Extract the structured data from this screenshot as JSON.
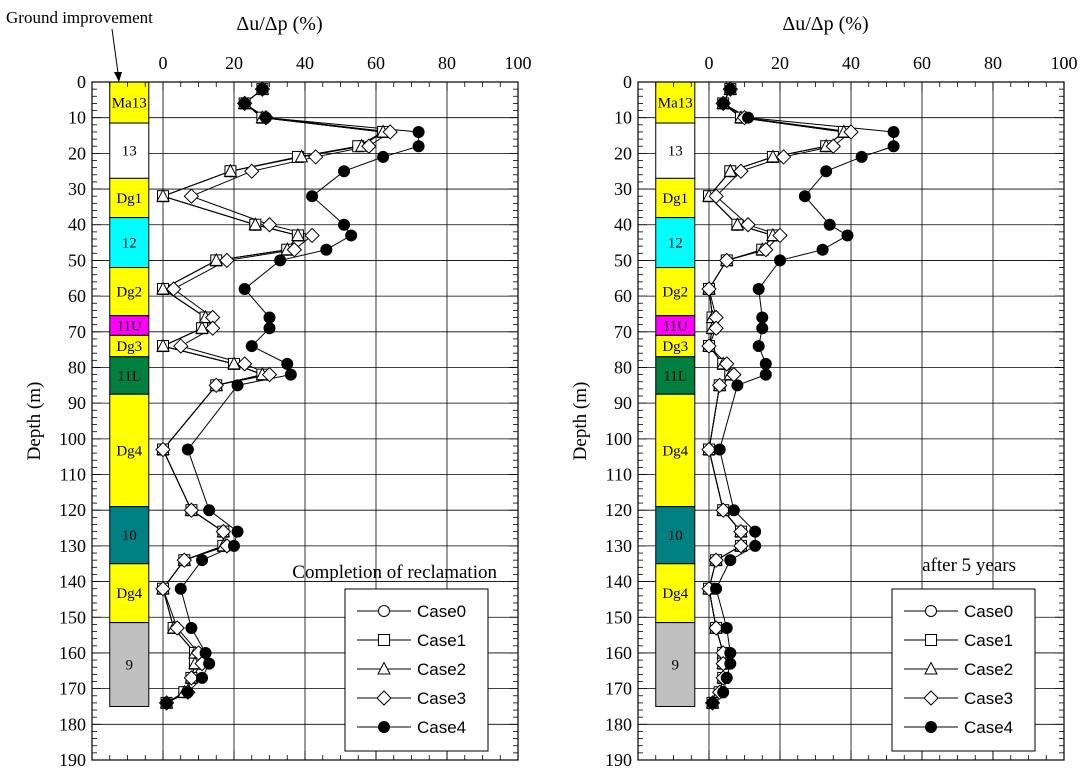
{
  "figure": {
    "ground_improvement_label": "Ground improvement"
  },
  "layers": [
    {
      "name": "Ma13",
      "top": 0,
      "bottom": 11.5,
      "color": "#ffff00"
    },
    {
      "name": "13",
      "top": 11.5,
      "bottom": 27,
      "color": "#ffffff"
    },
    {
      "name": "Dg1",
      "top": 27,
      "bottom": 38,
      "color": "#ffff00"
    },
    {
      "name": "12",
      "top": 38,
      "bottom": 52,
      "color": "#00ffff"
    },
    {
      "name": "Dg2",
      "top": 52,
      "bottom": 65.5,
      "color": "#ffff00"
    },
    {
      "name": "11U",
      "top": 65.5,
      "bottom": 71,
      "color": "#ff00ff"
    },
    {
      "name": "Dg3",
      "top": 71,
      "bottom": 77,
      "color": "#ffff00"
    },
    {
      "name": "11L",
      "top": 77,
      "bottom": 87.5,
      "color": "#007f3f"
    },
    {
      "name": "Dg4",
      "top": 87.5,
      "bottom": 119,
      "color": "#ffff00"
    },
    {
      "name": "10",
      "top": 119,
      "bottom": 135,
      "color": "#008080"
    },
    {
      "name": "Dg4",
      "top": 135,
      "bottom": 151.5,
      "color": "#ffff00"
    },
    {
      "name": "9",
      "top": 151.5,
      "bottom": 175,
      "color": "#c0c0c0"
    }
  ],
  "chart_data": [
    {
      "type": "line",
      "title": "Δu/Δp (%)",
      "xlabel": "Δu/Δp (%)",
      "ylabel": "Depth (m)",
      "annotation": "Completion of reclamation",
      "xlim": [
        -20,
        100
      ],
      "ylim": [
        190,
        0
      ],
      "x_ticks": [
        0,
        20,
        40,
        60,
        80,
        100
      ],
      "y_ticks": [
        0,
        10,
        20,
        30,
        40,
        50,
        60,
        70,
        80,
        90,
        100,
        110,
        120,
        130,
        140,
        150,
        160,
        170,
        180,
        190
      ],
      "grid": true,
      "legend_position": "bottom-right",
      "depths": [
        2,
        6,
        10,
        14,
        18,
        21,
        25,
        32,
        40,
        43,
        47,
        50,
        58,
        66,
        69,
        74,
        79,
        82,
        85,
        103,
        120,
        126,
        130,
        134,
        142,
        153,
        160,
        163,
        167,
        171,
        174
      ],
      "series": [
        {
          "name": "Case0",
          "marker": "circle",
          "values": [
            28,
            23,
            28,
            62,
            55,
            38,
            19,
            0,
            26,
            38,
            35,
            15,
            0,
            12,
            11,
            0,
            20,
            28,
            15,
            0,
            8,
            17,
            17,
            6,
            0,
            3,
            9,
            9,
            8,
            6,
            1
          ]
        },
        {
          "name": "Case1",
          "marker": "square",
          "values": [
            28,
            23,
            28,
            62,
            55,
            38,
            19,
            0,
            26,
            38,
            35,
            15,
            0,
            12,
            11,
            0,
            20,
            28,
            15,
            0,
            8,
            17,
            17,
            6,
            0,
            3,
            9,
            9,
            8,
            6,
            1
          ]
        },
        {
          "name": "Case2",
          "marker": "triangle",
          "values": [
            28,
            23,
            28,
            62,
            56,
            39,
            19,
            0,
            26,
            38,
            35,
            15,
            0,
            12,
            11,
            0,
            20,
            28,
            15,
            0,
            8,
            17,
            17,
            6,
            0,
            3,
            9,
            9,
            8,
            6,
            1
          ]
        },
        {
          "name": "Case3",
          "marker": "diamond",
          "values": [
            28,
            23,
            29,
            64,
            58,
            43,
            25,
            8,
            30,
            42,
            37,
            18,
            3,
            14,
            14,
            5,
            23,
            30,
            15,
            0,
            8,
            17,
            18,
            6,
            0,
            4,
            10,
            11,
            8,
            7,
            1
          ]
        },
        {
          "name": "Case4",
          "marker": "filled-circle",
          "values": [
            28,
            23,
            29,
            72,
            72,
            62,
            51,
            42,
            51,
            53,
            46,
            33,
            23,
            30,
            30,
            25,
            35,
            36,
            21,
            7,
            13,
            21,
            20,
            11,
            5,
            8,
            12,
            13,
            11,
            7,
            1
          ]
        }
      ]
    },
    {
      "type": "line",
      "title": "Δu/Δp (%)",
      "xlabel": "Δu/Δp (%)",
      "ylabel": "Depth (m)",
      "annotation": "after 5 years",
      "xlim": [
        -20,
        100
      ],
      "ylim": [
        190,
        0
      ],
      "x_ticks": [
        0,
        20,
        40,
        60,
        80,
        100
      ],
      "y_ticks": [
        0,
        10,
        20,
        30,
        40,
        50,
        60,
        70,
        80,
        90,
        100,
        110,
        120,
        130,
        140,
        150,
        160,
        170,
        180,
        190
      ],
      "grid": true,
      "legend_position": "bottom-right",
      "depths": [
        2,
        6,
        10,
        14,
        18,
        21,
        25,
        32,
        40,
        43,
        47,
        50,
        58,
        66,
        69,
        74,
        79,
        82,
        85,
        103,
        120,
        126,
        130,
        134,
        142,
        153,
        160,
        163,
        167,
        171,
        174
      ],
      "series": [
        {
          "name": "Case0",
          "marker": "circle",
          "values": [
            6,
            4,
            9,
            38,
            33,
            18,
            6,
            0,
            8,
            18,
            15,
            5,
            0,
            1,
            1,
            0,
            4,
            6,
            3,
            0,
            4,
            9,
            9,
            2,
            0,
            2,
            4,
            4,
            4,
            3,
            1
          ]
        },
        {
          "name": "Case1",
          "marker": "square",
          "values": [
            6,
            4,
            9,
            38,
            33,
            18,
            6,
            0,
            8,
            18,
            15,
            5,
            0,
            1,
            1,
            0,
            4,
            6,
            3,
            0,
            4,
            9,
            9,
            2,
            0,
            2,
            4,
            4,
            4,
            3,
            1
          ]
        },
        {
          "name": "Case2",
          "marker": "triangle",
          "values": [
            6,
            4,
            9,
            38,
            33,
            18,
            6,
            0,
            8,
            18,
            15,
            5,
            0,
            1,
            1,
            0,
            4,
            6,
            3,
            0,
            4,
            9,
            9,
            2,
            0,
            2,
            4,
            4,
            4,
            3,
            1
          ]
        },
        {
          "name": "Case3",
          "marker": "diamond",
          "values": [
            6,
            4,
            10,
            40,
            35,
            21,
            9,
            2,
            11,
            20,
            16,
            5,
            0,
            2,
            2,
            0,
            5,
            7,
            3,
            0,
            4,
            9,
            9,
            2,
            0,
            2,
            4,
            4,
            4,
            3,
            1
          ]
        },
        {
          "name": "Case4",
          "marker": "filled-circle",
          "values": [
            6,
            4,
            11,
            52,
            52,
            43,
            33,
            27,
            34,
            39,
            32,
            20,
            14,
            15,
            15,
            14,
            16,
            16,
            8,
            3,
            7,
            13,
            13,
            6,
            2,
            5,
            6,
            6,
            5,
            4,
            1
          ]
        }
      ]
    }
  ]
}
